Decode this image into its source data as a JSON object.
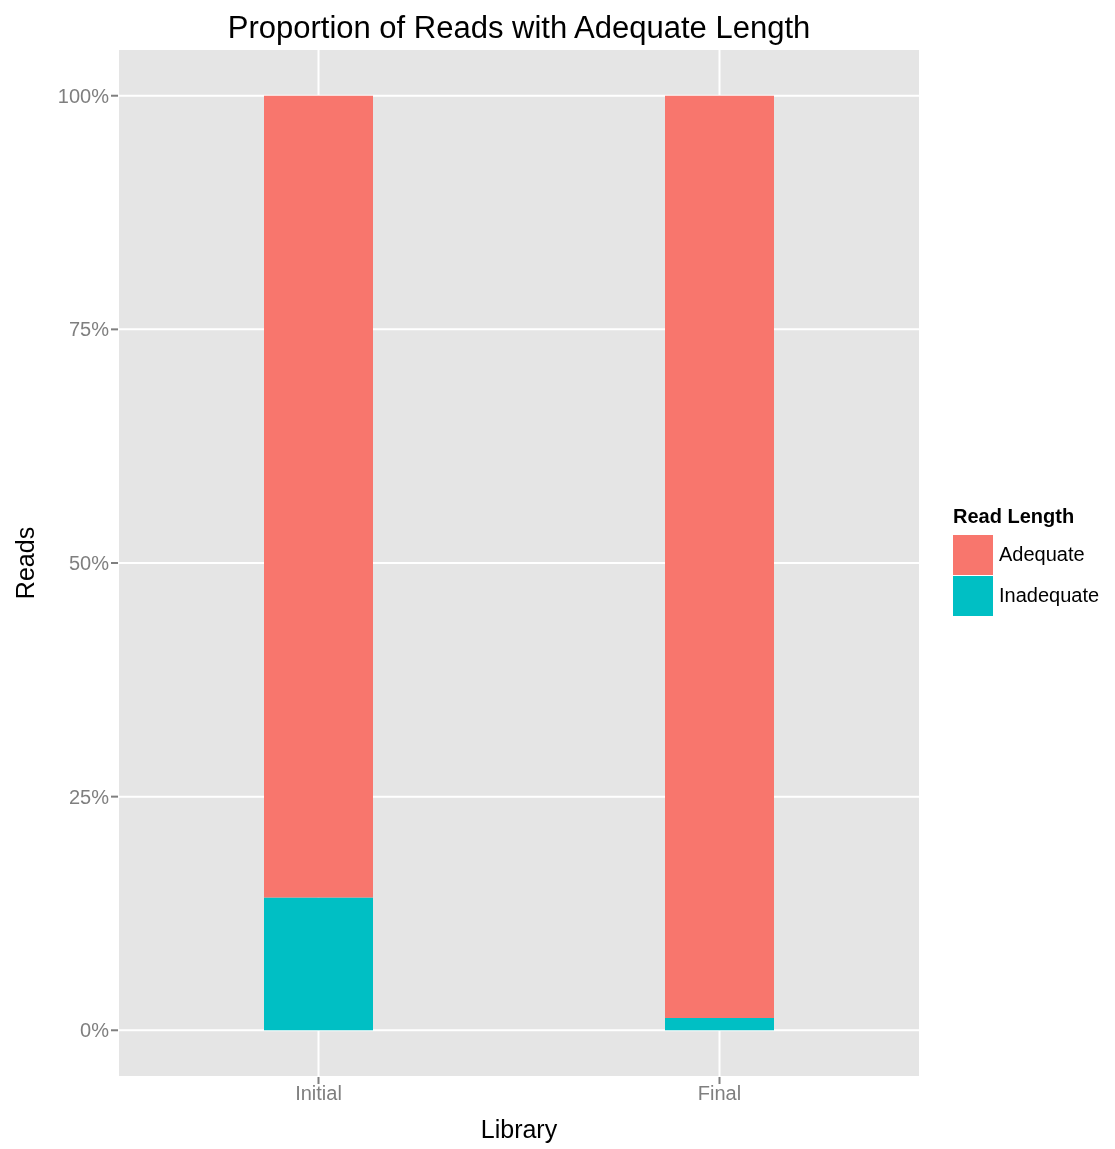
{
  "chart_data": {
    "type": "bar",
    "title": "Proportion of Reads with Adequate Length",
    "xlabel": "Library",
    "ylabel": "Reads",
    "legend_title": "Read Length",
    "categories": [
      "Initial",
      "Final"
    ],
    "stacked": true,
    "series": [
      {
        "name": "Inadequate",
        "color": "#00bfc4",
        "values": [
          14.2,
          1.3
        ]
      },
      {
        "name": "Adequate",
        "color": "#f8766d",
        "values": [
          85.8,
          98.7
        ]
      }
    ],
    "ylim": [
      -5,
      105
    ],
    "yticks": [
      {
        "value": 0,
        "label": "0%"
      },
      {
        "value": 25,
        "label": "25%"
      },
      {
        "value": 50,
        "label": "50%"
      },
      {
        "value": 75,
        "label": "75%"
      },
      {
        "value": 100,
        "label": "100%"
      }
    ],
    "grid": true,
    "legend": "right"
  }
}
